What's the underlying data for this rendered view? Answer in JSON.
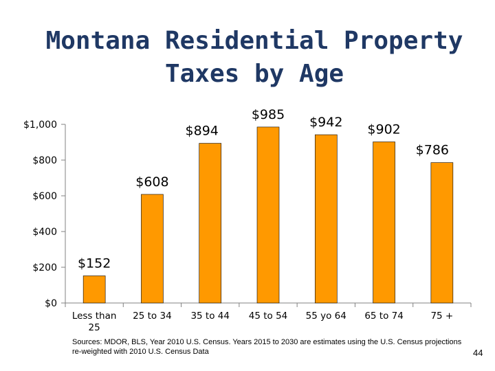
{
  "slide": {
    "title_line1": "Montana Residential Property",
    "title_line2": "Taxes by Age",
    "sources": "Sources:  MDOR, BLS, Year 2010 U.S. Census.  Years 2015 to 2030 are estimates using the U.S. Census projections re-weighted with 2010 U.S. Census Data",
    "page_number": "44"
  },
  "chart_data": {
    "type": "bar",
    "categories": [
      "Less than 25",
      "25 to 34",
      "35 to 44",
      "45 to 54",
      "55 yo 64",
      "65 to 74",
      "75 +"
    ],
    "category_lines": [
      [
        "Less than",
        "25"
      ],
      [
        "25 to 34"
      ],
      [
        "35 to 44"
      ],
      [
        "45 to 54"
      ],
      [
        "55 yo 64"
      ],
      [
        "65 to 74"
      ],
      [
        "75 +"
      ]
    ],
    "values": [
      152,
      608,
      894,
      985,
      942,
      902,
      786
    ],
    "data_labels": [
      "$152",
      "$608",
      "$894",
      "$985",
      "$942",
      "$902",
      "$786"
    ],
    "y_ticks": [
      0,
      200,
      400,
      600,
      800,
      1000
    ],
    "y_tick_labels": [
      "$0",
      "$200",
      "$400",
      "$600",
      "$800",
      "$1,000"
    ],
    "ylim": [
      0,
      1000
    ],
    "grid": false,
    "legend": "none",
    "bar_color": "#ff9900",
    "bar_outline_color": "#000000"
  }
}
